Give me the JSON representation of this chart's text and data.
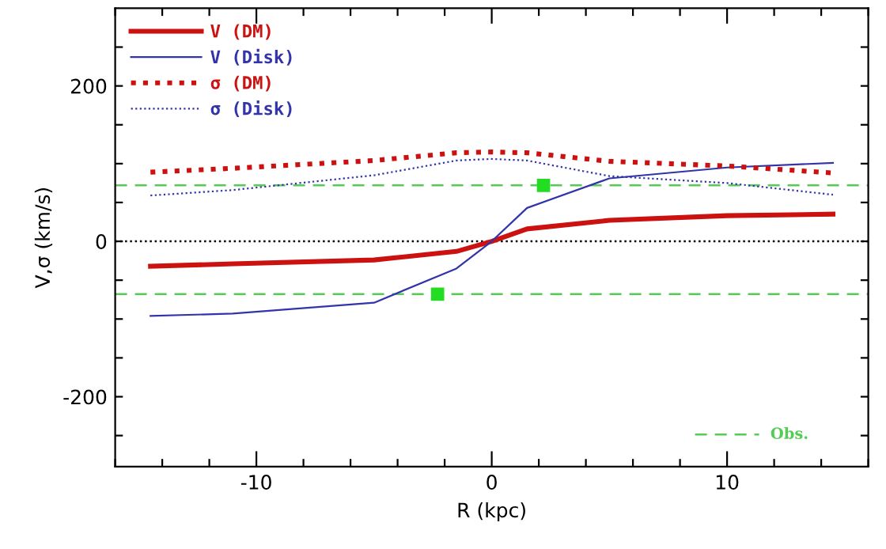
{
  "chart_data": {
    "type": "line",
    "xlabel": "R (kpc)",
    "ylabel": "V,σ (km/s)",
    "x": [
      -14.5,
      -11,
      -5,
      -1.5,
      0,
      1.5,
      5,
      10,
      14.5
    ],
    "series": [
      {
        "name": "V (DM)",
        "color": "#cc1111",
        "values": [
          -32,
          -29,
          -24,
          -13,
          0,
          16,
          27,
          33,
          35
        ],
        "line_style": "solid"
      },
      {
        "name": "V (Disk)",
        "color": "#3333aa",
        "values": [
          -96,
          -93,
          -79,
          -35,
          0,
          43,
          81,
          95,
          101
        ],
        "line_style": "solid"
      },
      {
        "name": "σ (DM)",
        "color": "#cc1111",
        "values": [
          89,
          94,
          104,
          114,
          115,
          114,
          103,
          97,
          88
        ],
        "line_style": "dotted"
      },
      {
        "name": "σ (Disk)",
        "color": "#3333aa",
        "values": [
          59,
          66,
          85,
          104,
          106,
          104,
          84,
          75,
          60
        ],
        "line_style": "dotted"
      },
      {
        "type": "scatter",
        "color": "#22dd22",
        "x": [
          2.2,
          -2.3
        ],
        "values": [
          72,
          -68
        ],
        "errors": [
          5,
          5
        ],
        "marker": "square"
      }
    ],
    "ref_lines": [
      {
        "axis": "y",
        "value": 0,
        "color": "#000000",
        "line_style": "dotted"
      },
      {
        "axis": "y",
        "value": 72,
        "color": "#55cc55",
        "line_style": "dashed",
        "label": "Obs."
      },
      {
        "axis": "y",
        "value": -68,
        "color": "#55cc55",
        "line_style": "dashed"
      }
    ],
    "xlim": [
      -16,
      16
    ],
    "ylim": [
      -290,
      300
    ],
    "xticks": [
      {
        "value": -16,
        "label": null
      },
      {
        "value": -14,
        "label": null
      },
      {
        "value": -12,
        "label": null
      },
      -10,
      {
        "value": -8,
        "label": null
      },
      {
        "value": -6,
        "label": null
      },
      {
        "value": -4,
        "label": null
      },
      {
        "value": -2,
        "label": null
      },
      0,
      {
        "value": 2,
        "label": null
      },
      {
        "value": 4,
        "label": null
      },
      {
        "value": 6,
        "label": null
      },
      {
        "value": 8,
        "label": null
      },
      10,
      {
        "value": 12,
        "label": null
      },
      {
        "value": 14,
        "label": null
      },
      {
        "value": 16,
        "label": null
      }
    ],
    "yticks": [
      {
        "value": -250,
        "label": null
      },
      -200,
      {
        "value": -150,
        "label": null
      },
      {
        "value": -100,
        "label": null
      },
      {
        "value": -50,
        "label": null
      },
      0,
      {
        "value": 50,
        "label": null
      },
      {
        "value": 100,
        "label": null
      },
      {
        "value": 150,
        "label": null
      },
      200,
      {
        "value": 250,
        "label": null
      }
    ],
    "legend": "top left",
    "grid": false
  }
}
